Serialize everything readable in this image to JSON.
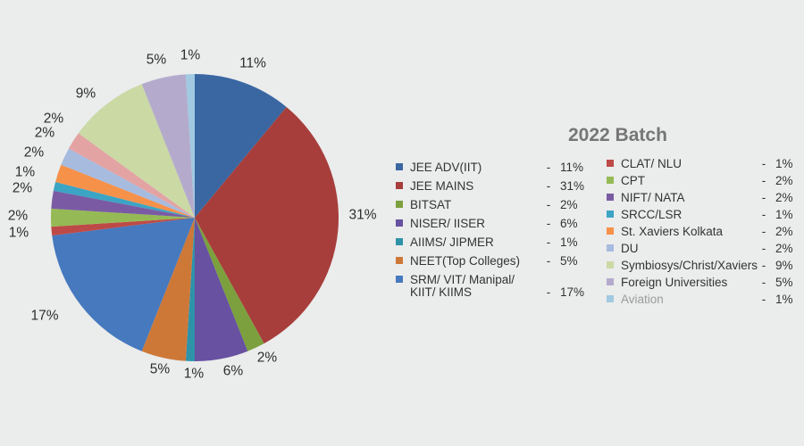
{
  "background_color": "#EBECEC",
  "chart_data": {
    "type": "pie",
    "title": "2022 Batch",
    "title_color": "#767676",
    "direction": "clockwise",
    "start_angle_deg": 0,
    "legend_position": "right-of-chart, two columns",
    "value_label_suffix": "%",
    "legend_separator": "-",
    "slices": [
      {
        "label": "JEE ADV(IIT)",
        "pct": 11,
        "color": "#3A67A2",
        "legend_column": "left"
      },
      {
        "label": "JEE MAINS",
        "pct": 31,
        "color": "#A73E3B",
        "legend_column": "left"
      },
      {
        "label": "BITSAT",
        "pct": 2,
        "color": "#7CA03E",
        "legend_column": "left"
      },
      {
        "label": "NISER/ IISER",
        "pct": 6,
        "color": "#6751A0",
        "legend_column": "left"
      },
      {
        "label": "AIIMS/ JIPMER",
        "pct": 1,
        "color": "#2E93A9",
        "legend_column": "left"
      },
      {
        "label": "NEET(Top Colleges)",
        "pct": 5,
        "color": "#CE7838",
        "legend_column": "left"
      },
      {
        "label": "SRM/ VIT/ Manipal/ KIIT/ KIIMS",
        "pct": 17,
        "color": "#4679BE",
        "legend_column": "left"
      },
      {
        "label": "CLAT/ NLU",
        "pct": 1,
        "color": "#BE4A47",
        "legend_column": "right"
      },
      {
        "label": "CPT",
        "pct": 2,
        "color": "#95BA55",
        "legend_column": "right"
      },
      {
        "label": "NIFT/ NATA",
        "pct": 2,
        "color": "#7A5BA3",
        "legend_column": "right"
      },
      {
        "label": "SRCC/LSR",
        "pct": 1,
        "color": "#3CA4C4",
        "legend_column": "right"
      },
      {
        "label": "St. Xaviers Kolkata",
        "pct": 2,
        "color": "#F6914A",
        "legend_column": "right"
      },
      {
        "label": "DU",
        "pct": 2,
        "color": "#A7BBDF",
        "legend_column": "right"
      },
      {
        "label": null,
        "pct": 2,
        "color": "#E3A3A3",
        "legend_column": null
      },
      {
        "label": "Symbiosys/Christ/Xaviers",
        "pct": 9,
        "color": "#CBD9A5",
        "legend_column": "right"
      },
      {
        "label": "Foreign Universities",
        "pct": 5,
        "color": "#B4ABCC",
        "legend_column": "right"
      },
      {
        "label": "Aviation",
        "pct": 1,
        "color": "#A1C9E1",
        "legend_column": "right",
        "muted_label": true
      }
    ]
  }
}
